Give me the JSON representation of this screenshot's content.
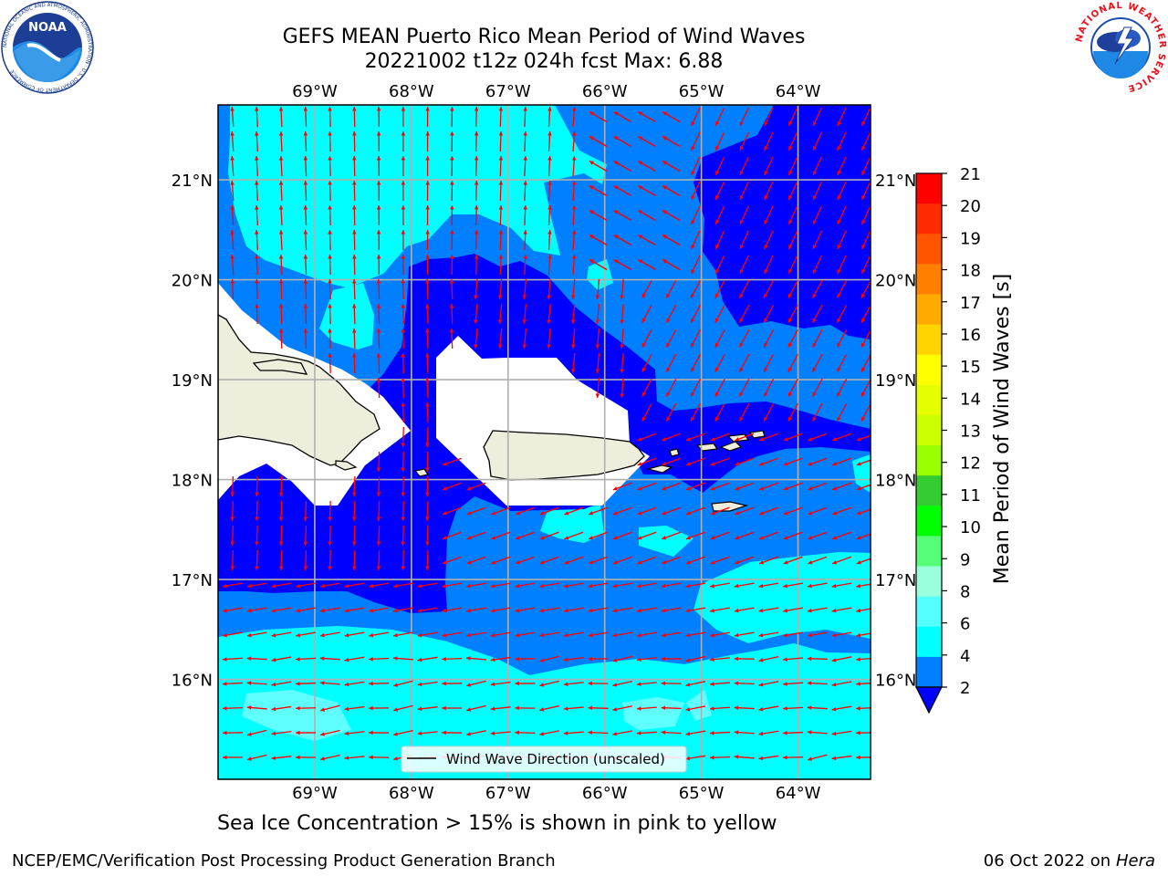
{
  "title": {
    "line1": "GEFS MEAN Puerto Rico Mean Period of Wind Waves",
    "line2": "20221002 t12z 024h fcst   Max: 6.88"
  },
  "map": {
    "lon_labels": [
      "69°W",
      "68°W",
      "67°W",
      "66°W",
      "65°W",
      "64°W"
    ],
    "lat_labels": [
      "21°N",
      "20°N",
      "19°N",
      "18°N",
      "17°N",
      "16°N"
    ],
    "lon_values": [
      -69,
      -68,
      -67,
      -66,
      -65,
      -64
    ],
    "lat_values": [
      21,
      20,
      19,
      18,
      17,
      16
    ],
    "lon_range": [
      -70,
      -63.25
    ],
    "lat_range": [
      15,
      21.75
    ],
    "legend_label": "Wind Wave Direction (unscaled)",
    "colors": {
      "deep_blue": "#0000ff",
      "mid_blue": "#0080ff",
      "cyan": "#00ffff",
      "light_cyan": "#60ffff",
      "land": "#eeeedd",
      "arrow": "#ff0000"
    }
  },
  "colorbar": {
    "label": "Mean Period of Wind Waves [s]",
    "ticks": [
      "21",
      "20",
      "19",
      "18",
      "17",
      "16",
      "15",
      "14",
      "13",
      "12",
      "11",
      "10",
      "9",
      "8",
      "6",
      "4",
      "2"
    ],
    "colors": [
      "#ff0000",
      "#ff2a00",
      "#ff5500",
      "#ff8000",
      "#ffaa00",
      "#ffd400",
      "#ffff00",
      "#e6ff00",
      "#ccff00",
      "#99ff00",
      "#33cc33",
      "#00ff00",
      "#55ff77",
      "#99ffdd",
      "#55ffff",
      "#00ffff",
      "#0080ff"
    ],
    "under_color": "#0000ff"
  },
  "caption": "Sea Ice Concentration > 15% is shown in pink to yellow",
  "footer": {
    "left": "NCEP/EMC/Verification Post Processing Product Generation Branch",
    "right_prefix": "06 Oct 2022 on ",
    "right_host": "Hera"
  },
  "logos": {
    "noaa_text": "NOAA",
    "noaa_ring": "NATIONAL OCEANIC AND ATMOSPHERIC ADMINISTRATION · U.S. DEPARTMENT OF COMMERCE",
    "nws_ring": "NATIONAL WEATHER SERVICE"
  }
}
